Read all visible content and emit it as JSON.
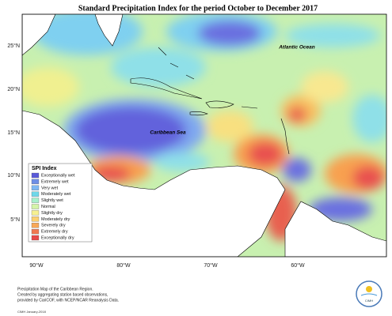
{
  "title": "Standard Precipitation Index for the period October to December 2017",
  "places": [
    "Atlantic Ocean",
    "Caribbean Sea"
  ],
  "lat_ticks": [
    "25°N",
    "20°N",
    "15°N",
    "10°N",
    "5°N"
  ],
  "lon_ticks": [
    "90°W",
    "80°W",
    "70°W",
    "60°W"
  ],
  "legend": {
    "title": "SPI Index",
    "items": [
      {
        "label": "Exceptionally wet",
        "color": "#5a5ad8"
      },
      {
        "label": "Extremely wet",
        "color": "#6e8ee6"
      },
      {
        "label": "Very wet",
        "color": "#7fb8f4"
      },
      {
        "label": "Moderately wet",
        "color": "#6fd8ea"
      },
      {
        "label": "Slightly wet",
        "color": "#a8f0cc"
      },
      {
        "label": "Normal",
        "color": "#d4f4a8"
      },
      {
        "label": "Slightly dry",
        "color": "#f6f090"
      },
      {
        "label": "Moderately dry",
        "color": "#fcd070"
      },
      {
        "label": "Severely dry",
        "color": "#f8a858"
      },
      {
        "label": "Extremely dry",
        "color": "#f07850"
      },
      {
        "label": "Exceptionally dry",
        "color": "#e84848"
      }
    ]
  },
  "footer": [
    "Precipitation Map of the Caribbean Region.",
    "Created by aggregating station based observations,",
    "provided by CariCOF, with NCEP/NCAR Reanalysis Data."
  ],
  "credit": "CIMH January-2018",
  "logo": "CIMH"
}
